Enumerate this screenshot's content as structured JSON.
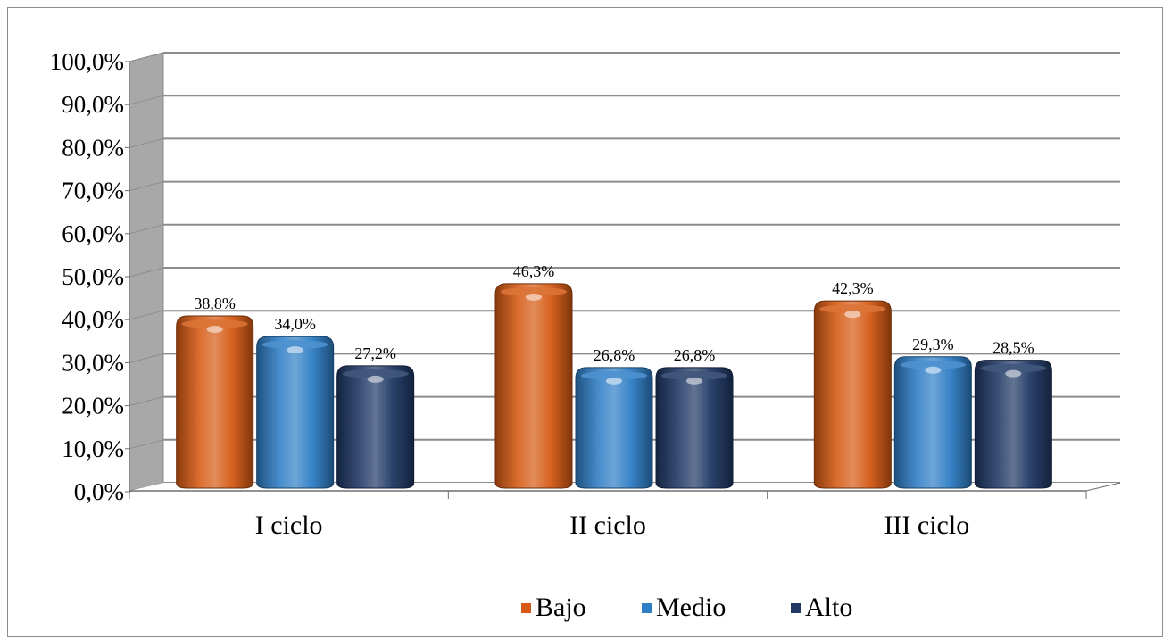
{
  "chart_data": {
    "type": "bar",
    "categories": [
      "I ciclo",
      "II ciclo",
      "III ciclo"
    ],
    "series": [
      {
        "name": "Bajo",
        "values": [
          38.8,
          46.3,
          42.3
        ],
        "labels": [
          "38,8%",
          "46,3%",
          "42,3%"
        ],
        "color": "#D65A14"
      },
      {
        "name": "Medio",
        "values": [
          34.0,
          26.8,
          29.3
        ],
        "labels": [
          "34,0%",
          "26,8%",
          "29,3%"
        ],
        "color": "#2F7EC6"
      },
      {
        "name": "Alto",
        "values": [
          27.2,
          26.8,
          28.5
        ],
        "labels": [
          "27,2%",
          "26,8%",
          "28,5%"
        ],
        "color": "#1F3864"
      }
    ],
    "y_ticks": [
      "0,0%",
      "10,0%",
      "20,0%",
      "30,0%",
      "40,0%",
      "50,0%",
      "60,0%",
      "70,0%",
      "80,0%",
      "90,0%",
      "100,0%"
    ],
    "ylim": [
      0,
      100
    ],
    "title": "",
    "xlabel": "",
    "ylabel": "",
    "grid": true,
    "legend_position": "bottom",
    "style": "3d-cylinder"
  }
}
